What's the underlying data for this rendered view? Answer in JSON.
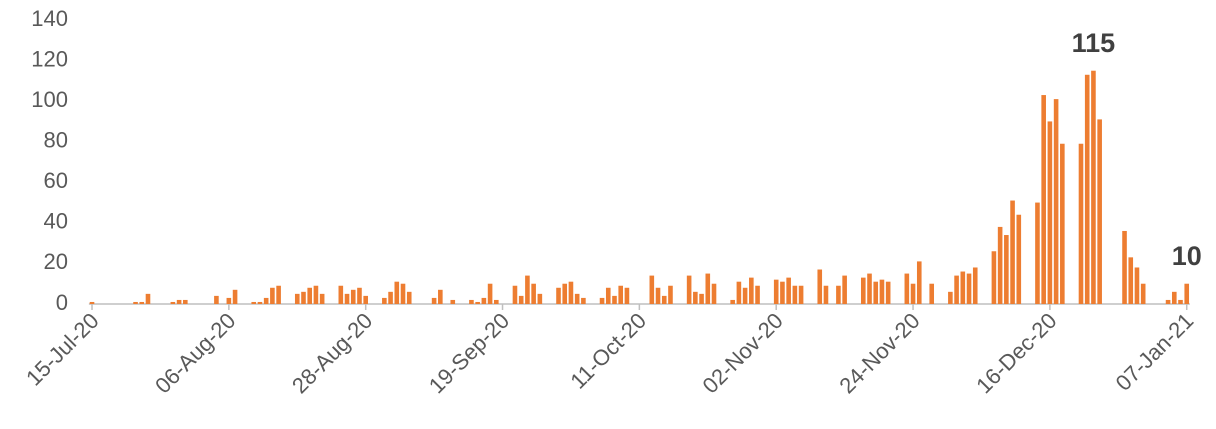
{
  "chart_data": {
    "type": "bar",
    "categories": [
      "15-Jul-20",
      null,
      null,
      null,
      null,
      null,
      null,
      null,
      null,
      null,
      null,
      null,
      null,
      null,
      null,
      null,
      null,
      null,
      null,
      null,
      null,
      null,
      "06-Aug-20",
      null,
      null,
      null,
      null,
      null,
      null,
      null,
      null,
      null,
      null,
      null,
      null,
      null,
      null,
      null,
      null,
      null,
      null,
      null,
      null,
      null,
      "28-Aug-20",
      null,
      null,
      null,
      null,
      null,
      null,
      null,
      null,
      null,
      null,
      null,
      null,
      null,
      null,
      null,
      null,
      null,
      null,
      null,
      null,
      null,
      "19-Sep-20",
      null,
      null,
      null,
      null,
      null,
      null,
      null,
      null,
      null,
      null,
      null,
      null,
      null,
      null,
      null,
      null,
      null,
      null,
      null,
      null,
      null,
      "11-Oct-20",
      null,
      null,
      null,
      null,
      null,
      null,
      null,
      null,
      null,
      null,
      null,
      null,
      null,
      null,
      null,
      null,
      null,
      null,
      null,
      null,
      null,
      "02-Nov-20",
      null,
      null,
      null,
      null,
      null,
      null,
      null,
      null,
      null,
      null,
      null,
      null,
      null,
      null,
      null,
      null,
      null,
      null,
      null,
      null,
      null,
      "24-Nov-20",
      null,
      null,
      null,
      null,
      null,
      null,
      null,
      null,
      null,
      null,
      null,
      null,
      null,
      null,
      null,
      null,
      null,
      null,
      null,
      null,
      null,
      "16-Dec-20",
      null,
      null,
      null,
      null,
      null,
      null,
      null,
      null,
      null,
      null,
      null,
      null,
      null,
      null,
      null,
      null,
      null,
      null,
      null,
      null,
      null,
      "07-Jan-21"
    ],
    "values": [
      1,
      0,
      0,
      0,
      0,
      0,
      0,
      1,
      1,
      5,
      0,
      0,
      0,
      1,
      2,
      2,
      0,
      0,
      0,
      0,
      4,
      0,
      3,
      7,
      0,
      0,
      1,
      1,
      3,
      8,
      9,
      0,
      0,
      5,
      6,
      8,
      9,
      5,
      0,
      0,
      9,
      5,
      7,
      8,
      4,
      0,
      0,
      3,
      6,
      11,
      10,
      6,
      0,
      0,
      0,
      3,
      7,
      0,
      2,
      0,
      0,
      2,
      1,
      3,
      10,
      2,
      0,
      0,
      9,
      4,
      14,
      10,
      5,
      0,
      0,
      8,
      10,
      11,
      5,
      3,
      0,
      0,
      3,
      8,
      4,
      9,
      8,
      0,
      0,
      0,
      14,
      8,
      4,
      9,
      0,
      0,
      14,
      6,
      5,
      15,
      10,
      0,
      0,
      2,
      11,
      8,
      13,
      9,
      0,
      0,
      12,
      11,
      13,
      9,
      9,
      0,
      0,
      17,
      9,
      0,
      9,
      14,
      0,
      0,
      13,
      15,
      11,
      12,
      11,
      0,
      0,
      15,
      10,
      21,
      0,
      10,
      0,
      0,
      6,
      14,
      16,
      15,
      18,
      0,
      0,
      26,
      38,
      34,
      51,
      44,
      0,
      0,
      50,
      103,
      90,
      101,
      79,
      0,
      0,
      79,
      113,
      115,
      91,
      0,
      0,
      0,
      36,
      23,
      18,
      10,
      0,
      0,
      0,
      2,
      6,
      2,
      10
    ],
    "color": "#ED7D31",
    "data_labels_at": [
      161,
      176
    ],
    "ylim": [
      0,
      140
    ],
    "yticks": [
      0,
      20,
      40,
      60,
      80,
      100,
      120,
      140
    ],
    "grid": false
  }
}
